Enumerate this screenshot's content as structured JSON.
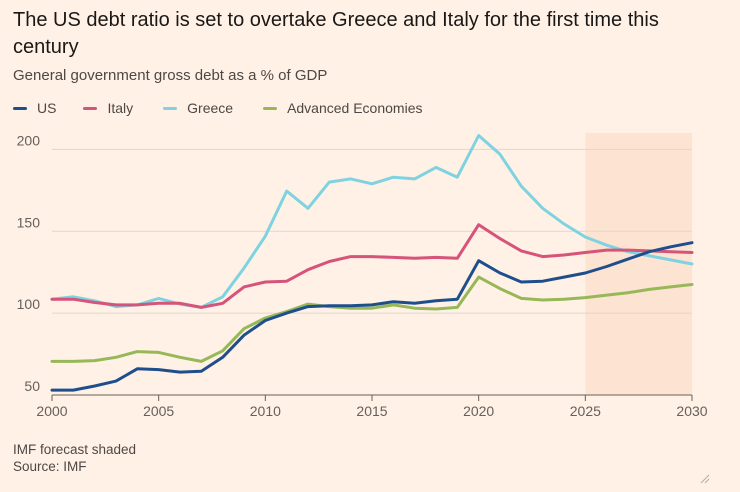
{
  "title": "The US debt ratio is set to overtake Greece and Italy for the first time this century",
  "subtitle": "General government gross debt as a % of GDP",
  "footnote": "IMF forecast shaded",
  "source": "Source: IMF",
  "chart_data": {
    "type": "line",
    "title": "The US debt ratio is set to overtake Greece and Italy for the first time this century",
    "subtitle": "General government gross debt as a % of GDP",
    "xlabel": "",
    "ylabel": "",
    "xlim": [
      2000,
      2030
    ],
    "ylim": [
      50,
      210
    ],
    "x_ticks": [
      "2000",
      "2005",
      "2010",
      "2015",
      "2020",
      "2025",
      "2030"
    ],
    "y_ticks": [
      "50",
      "100",
      "150",
      "200"
    ],
    "grid": true,
    "legend_position": "top-left",
    "forecast_shaded": [
      2025,
      2030
    ],
    "x": [
      2000,
      2001,
      2002,
      2003,
      2004,
      2005,
      2006,
      2007,
      2008,
      2009,
      2010,
      2011,
      2012,
      2013,
      2014,
      2015,
      2016,
      2017,
      2018,
      2019,
      2020,
      2021,
      2022,
      2023,
      2024,
      2025,
      2026,
      2027,
      2028,
      2029,
      2030
    ],
    "series": [
      {
        "name": "US",
        "color": "#1e4f8c",
        "values": [
          53,
          53,
          55.5,
          58.5,
          66,
          65.5,
          64,
          64.5,
          73,
          86.5,
          95.5,
          100,
          104,
          104.5,
          104.5,
          105,
          107,
          106,
          107.5,
          108.5,
          132,
          124.5,
          119,
          119.5,
          122,
          124.5,
          128.5,
          133,
          137.5,
          140.5,
          143
        ]
      },
      {
        "name": "Italy",
        "color": "#d6537a",
        "values": [
          108.5,
          108.5,
          106.5,
          105,
          105,
          106,
          106,
          103.5,
          106,
          116,
          119,
          119.5,
          126.5,
          131.5,
          134.5,
          134.5,
          134,
          133.5,
          134,
          133.5,
          154,
          145.5,
          138,
          134.5,
          135.5,
          137,
          138.5,
          138.5,
          138,
          137.5,
          137
        ]
      },
      {
        "name": "Greece",
        "color": "#7fd3e0",
        "values": [
          108.5,
          110,
          107.5,
          104,
          105,
          109,
          105.5,
          103.5,
          110,
          127.5,
          147,
          174.5,
          164,
          180,
          182,
          179,
          183,
          182,
          189,
          183,
          208.5,
          197,
          177.5,
          164,
          154.5,
          146.5,
          141.5,
          137.5,
          135,
          132.5,
          130
        ]
      },
      {
        "name": "Advanced Economies",
        "color": "#96b857",
        "values": [
          70.5,
          70.5,
          71,
          73,
          76.5,
          76,
          73,
          70.5,
          77,
          90.5,
          97,
          101,
          105.5,
          104,
          103,
          103,
          105,
          103,
          102.5,
          103.5,
          122,
          115,
          109,
          108,
          108.5,
          109.5,
          111,
          112.5,
          114.5,
          116,
          117.5
        ]
      }
    ]
  }
}
